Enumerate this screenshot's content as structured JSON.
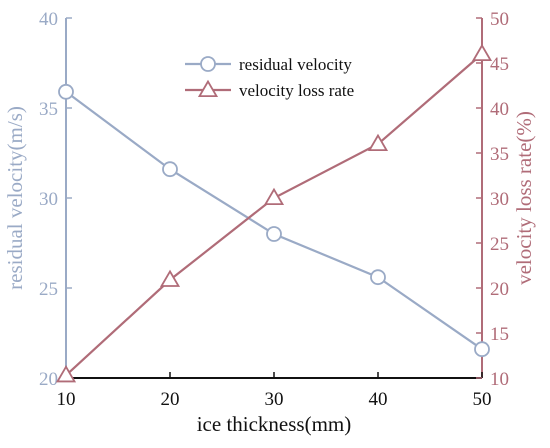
{
  "chart_data": {
    "type": "line",
    "xlabel": "ice thickness(mm)",
    "x": [
      10,
      20,
      30,
      40,
      50
    ],
    "xlim": [
      10,
      50
    ],
    "xticks": [
      "10",
      "20",
      "30",
      "40",
      "50"
    ],
    "left_axis": {
      "label": "residual velocity(m/s)",
      "ylim": [
        20,
        40
      ],
      "ticks": [
        "20",
        "25",
        "30",
        "35",
        "40"
      ],
      "color": "#9aaac6"
    },
    "right_axis": {
      "label": "velocity loss rate(%)",
      "ylim": [
        10,
        50
      ],
      "ticks": [
        "10",
        "15",
        "20",
        "25",
        "30",
        "35",
        "40",
        "45",
        "50"
      ],
      "color": "#b06c78"
    },
    "series": [
      {
        "name": "residual velocity",
        "axis": "left",
        "marker": "circle",
        "color": "#9aaac6",
        "values": [
          35.9,
          31.6,
          28.0,
          25.6,
          21.6
        ]
      },
      {
        "name": "velocity loss rate",
        "axis": "right",
        "marker": "triangle",
        "color": "#b06c78",
        "values": [
          10.3,
          20.9,
          30.0,
          36.0,
          46.0
        ]
      }
    ],
    "legend_position": "top-center",
    "grid": false
  }
}
